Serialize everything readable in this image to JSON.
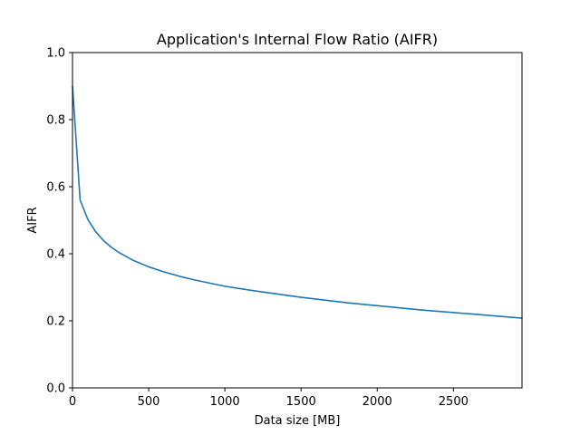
{
  "chart_data": {
    "type": "line",
    "title": "Application's Internal Flow Ratio (AIFR)",
    "xlabel": "Data size [MB]",
    "ylabel": "AIFR",
    "xlim": [
      0,
      2950
    ],
    "ylim": [
      0.0,
      1.0
    ],
    "xticks": [
      0,
      500,
      1000,
      1500,
      2000,
      2500
    ],
    "xtick_labels": [
      "0",
      "500",
      "1000",
      "1500",
      "2000",
      "2500"
    ],
    "yticks": [
      0.0,
      0.2,
      0.4,
      0.6,
      0.8,
      1.0
    ],
    "ytick_labels": [
      "0.0",
      "0.2",
      "0.4",
      "0.6",
      "0.8",
      "1.0"
    ],
    "grid": false,
    "series": [
      {
        "color": "#1f77b4",
        "x": [
          0,
          50,
          100,
          150,
          200,
          250,
          300,
          400,
          500,
          600,
          700,
          800,
          1000,
          1200,
          1500,
          1800,
          2000,
          2300,
          2600,
          2950
        ],
        "y": [
          0.9,
          0.56,
          0.503,
          0.467,
          0.441,
          0.421,
          0.405,
          0.38,
          0.361,
          0.346,
          0.333,
          0.322,
          0.303,
          0.289,
          0.27,
          0.254,
          0.245,
          0.232,
          0.221,
          0.208
        ]
      }
    ]
  }
}
